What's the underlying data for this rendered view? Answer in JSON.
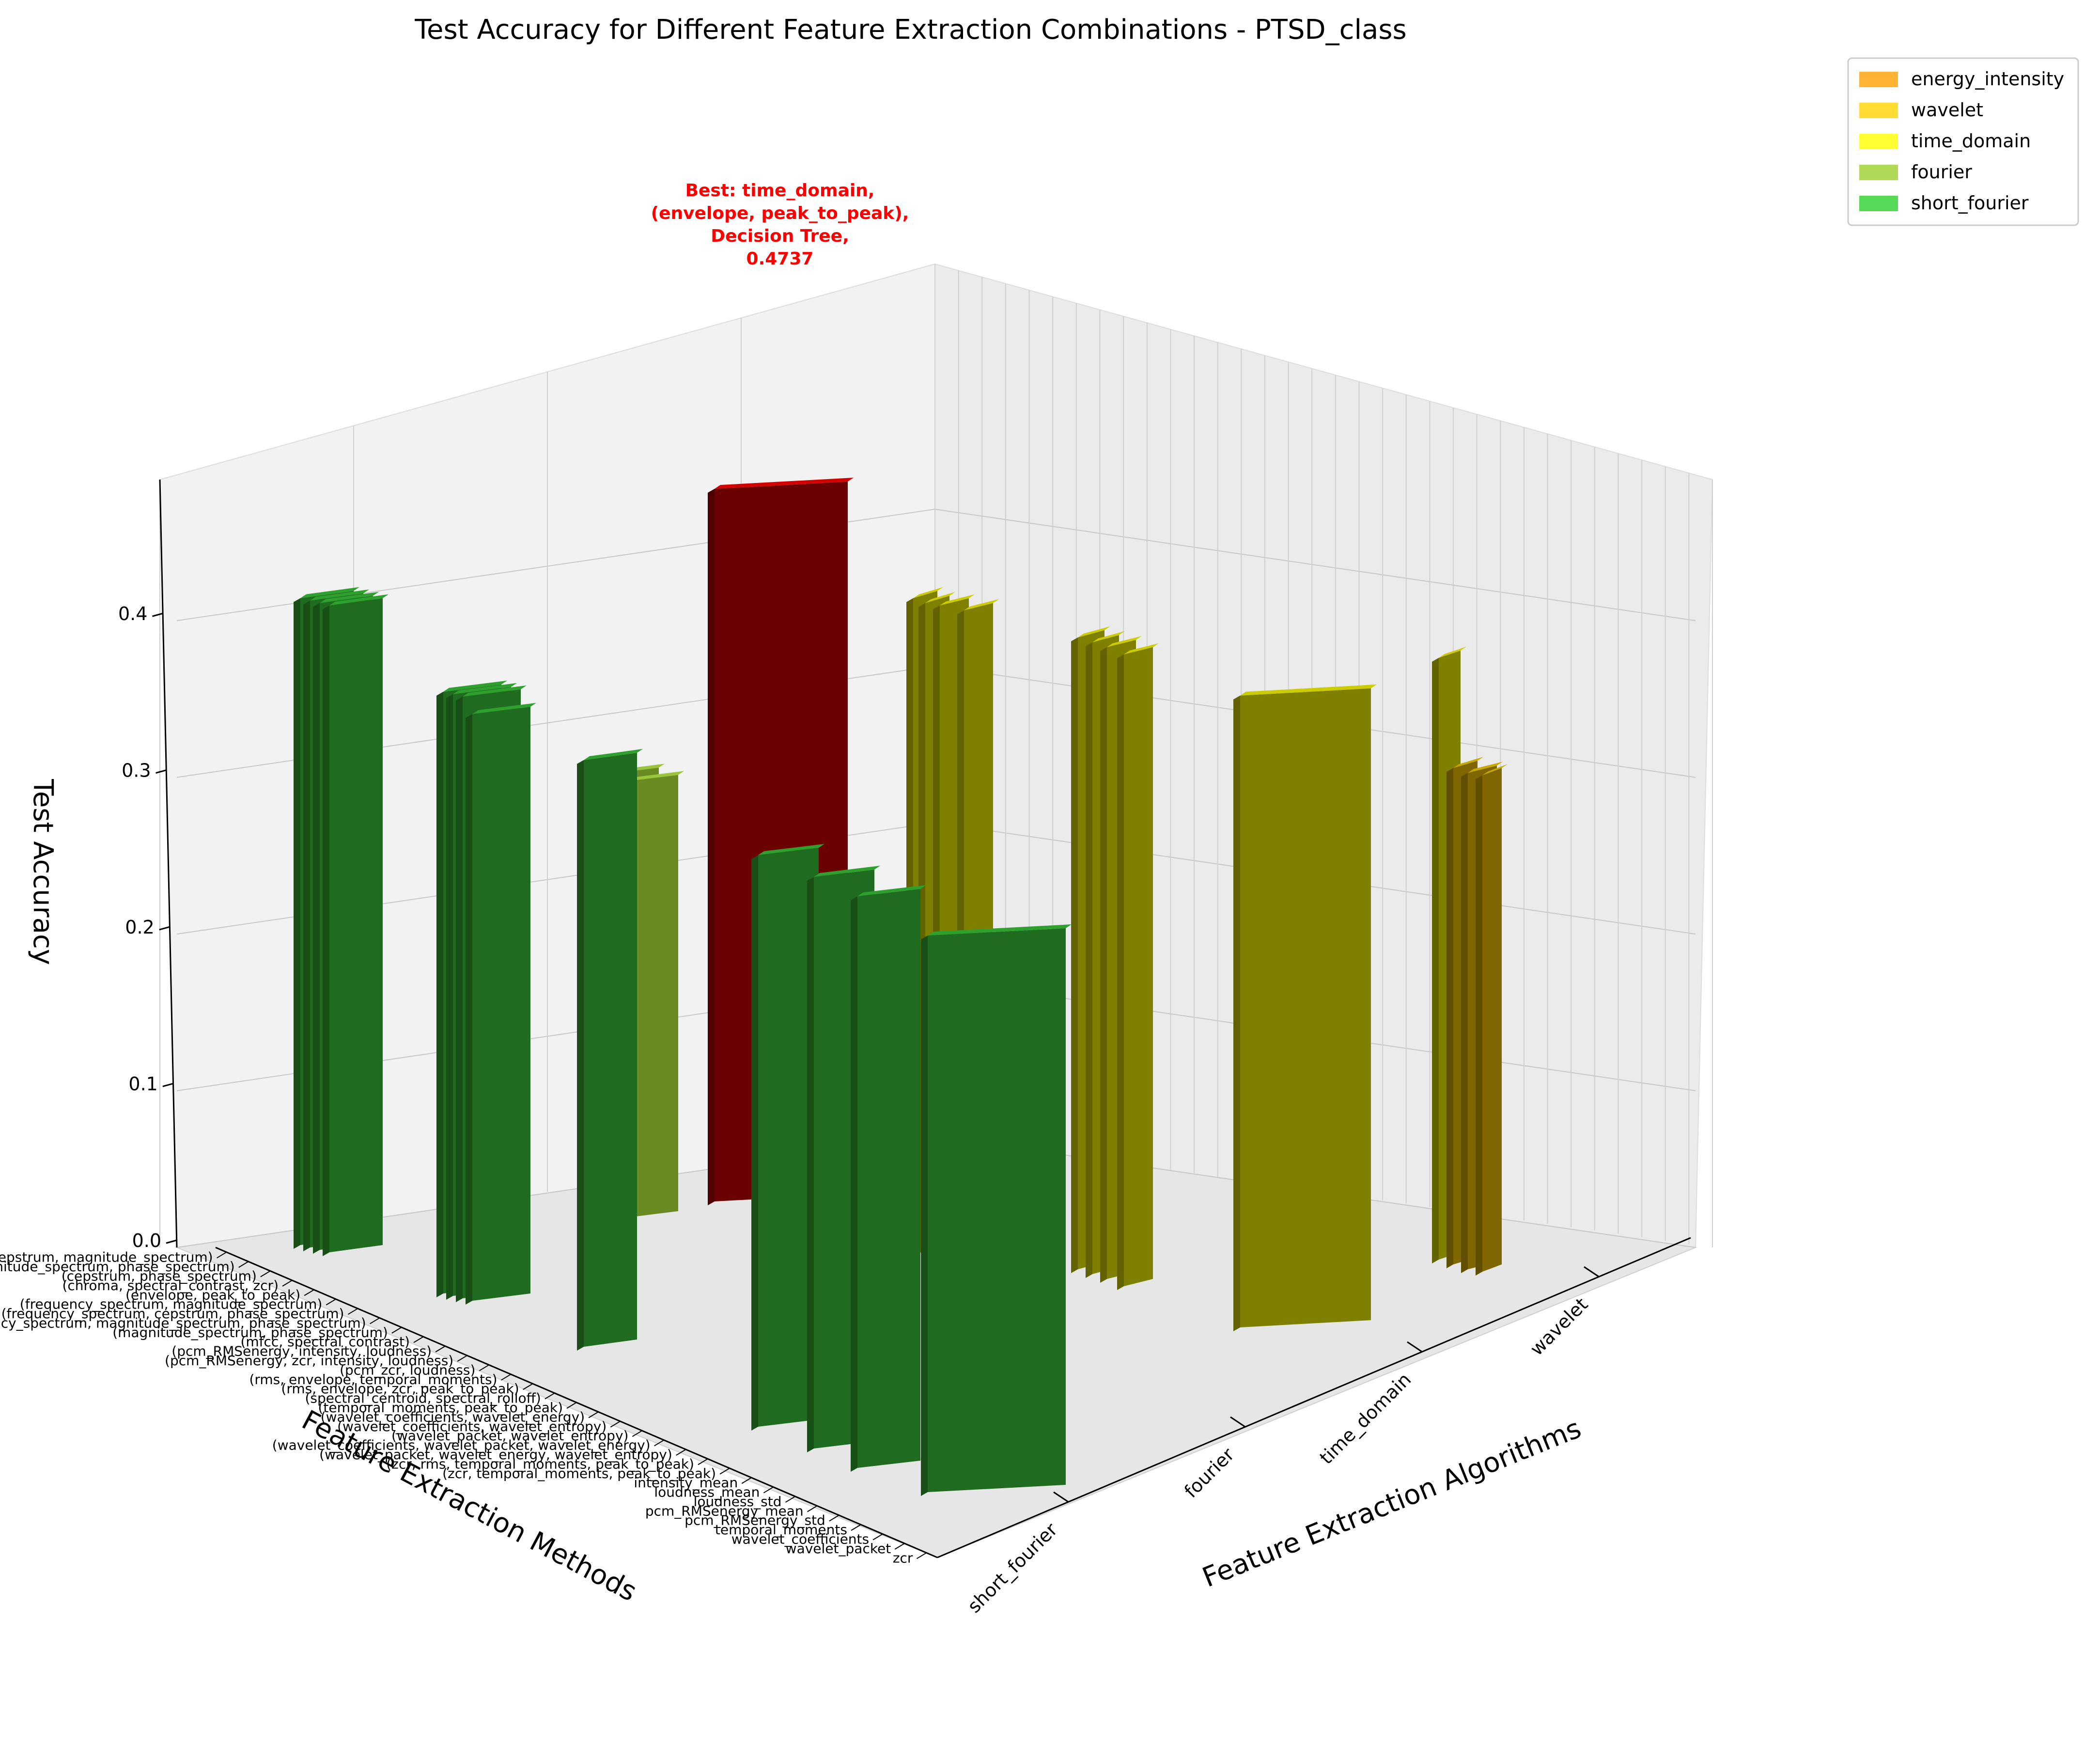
{
  "chart_data": {
    "type": "bar3d",
    "title": "Test Accuracy for Different Feature Extraction Combinations - PTSD_class",
    "zlabel": "Test Accuracy",
    "xlabel": "Feature Extraction Algorithms",
    "ylabel": "Feature Extraction Methods",
    "zlim": [
      0,
      0.49
    ],
    "zticks": [
      "0.0",
      "0.1",
      "0.2",
      "0.3",
      "0.4"
    ],
    "algorithm_ticks": [
      "short_fourier",
      "fourier",
      "time_domain",
      "wavelet"
    ],
    "legend": [
      {
        "label": "energy_intensity",
        "color": "#FFB533"
      },
      {
        "label": "wavelet",
        "color": "#FFDD33"
      },
      {
        "label": "time_domain",
        "color": "#FFFF33"
      },
      {
        "label": "fourier",
        "color": "#B0D957"
      },
      {
        "label": "short_fourier",
        "color": "#55D957"
      }
    ],
    "best_annotation": [
      "Best: time_domain,",
      "(envelope, peak_to_peak),",
      "Decision Tree,",
      "0.4737"
    ],
    "method_labels": [
      "(cepstrum, magnitude_spectrum)",
      "(cepstrum, magnitude_spectrum, phase_spectrum)",
      "(cepstrum, phase_spectrum)",
      "(chroma, spectral_contrast, zcr)",
      "(envelope, peak_to_peak)",
      "(frequency_spectrum, magnitude_spectrum)",
      "(frequency_spectrum, cepstrum, phase_spectrum)",
      "(frequency_spectrum, magnitude_spectrum, phase_spectrum)",
      "(magnitude_spectrum, phase_spectrum)",
      "(mfcc, spectral_contrast)",
      "(pcm_RMSenergy, intensity, loudness)",
      "(pcm_RMSenergy, zcr, intensity, loudness)",
      "(pcm_zcr, loudness)",
      "(rms, envelope, temporal_moments)",
      "(rms, envelope, zcr, peak_to_peak)",
      "(spectral_centroid, spectral_rolloff)",
      "(temporal_moments, peak_to_peak)",
      "(wavelet_coefficients, wavelet_energy)",
      "(wavelet_coefficients, wavelet_entropy)",
      "(wavelet_packet, wavelet_entropy)",
      "(wavelet_coefficients, wavelet_packet, wavelet_energy)",
      "(wavelet_packet, wavelet_energy, wavelet_entropy)",
      "(zcr, rms, temporal_moments, peak_to_peak)",
      "(zcr, temporal_moments, peak_to_peak)",
      "intensity_mean",
      "loudness_mean",
      "loudness_std",
      "pcm_RMSenergy_mean",
      "pcm_RMSenergy_std",
      "temporal_moments",
      "wavelet_coefficients",
      "wavelet_packet",
      "zcr"
    ],
    "bars": [
      {
        "algorithm": "short_fourier",
        "method": "(cepstrum, magnitude_spectrum)",
        "value": 0.43
      },
      {
        "algorithm": "short_fourier",
        "method": "(cepstrum, magnitude_spectrum, phase_spectrum)",
        "value": 0.43
      },
      {
        "algorithm": "short_fourier",
        "method": "(cepstrum, phase_spectrum)",
        "value": 0.43
      },
      {
        "algorithm": "short_fourier",
        "method": "(chroma, spectral_contrast, zcr)",
        "value": 0.43
      },
      {
        "algorithm": "short_fourier",
        "method": "(frequency_spectrum, magnitude_spectrum)",
        "value": 0.4
      },
      {
        "algorithm": "short_fourier",
        "method": "(frequency_spectrum, cepstrum, phase_spectrum)",
        "value": 0.4
      },
      {
        "algorithm": "short_fourier",
        "method": "(frequency_spectrum, magnitude_spectrum, phase_spectrum)",
        "value": 0.4
      },
      {
        "algorithm": "short_fourier",
        "method": "(magnitude_spectrum, phase_spectrum)",
        "value": 0.39
      },
      {
        "algorithm": "short_fourier",
        "method": "(mfcc, spectral_contrast)",
        "value": 0.39
      },
      {
        "algorithm": "fourier",
        "method": "(spectral_centroid, spectral_rolloff)",
        "value": 0.29
      },
      {
        "algorithm": "fourier",
        "method": "(magnitude_spectrum, phase_spectrum)",
        "value": 0.29
      },
      {
        "algorithm": "time_domain",
        "method": "(envelope, peak_to_peak)",
        "value": 0.4737
      },
      {
        "algorithm": "short_fourier",
        "method": "(wavelet_coefficients, wavelet_energy)",
        "value": 0.38
      },
      {
        "algorithm": "short_fourier",
        "method": "(wavelet_packet, wavelet_entropy)",
        "value": 0.38
      },
      {
        "algorithm": "short_fourier",
        "method": "(zcr, rms, temporal_moments, peak_to_peak)",
        "value": 0.38
      },
      {
        "algorithm": "short_fourier",
        "method": "loudness_std",
        "value": 0.37
      },
      {
        "algorithm": "time_domain",
        "method": "(pcm_RMSenergy, intensity, loudness)",
        "value": 0.43
      },
      {
        "algorithm": "time_domain",
        "method": "(pcm_zcr, loudness)",
        "value": 0.43
      },
      {
        "algorithm": "time_domain",
        "method": "(rms, envelope, temporal_moments)",
        "value": 0.43
      },
      {
        "algorithm": "time_domain",
        "method": "(rms, envelope, zcr, peak_to_peak)",
        "value": 0.43
      },
      {
        "algorithm": "time_domain",
        "method": "(temporal_moments, peak_to_peak)",
        "value": 0.42
      },
      {
        "algorithm": "time_domain",
        "method": "intensity_mean",
        "value": 0.42
      },
      {
        "algorithm": "time_domain",
        "method": "loudness_mean",
        "value": 0.42
      },
      {
        "algorithm": "time_domain",
        "method": "pcm_RMSenergy_mean",
        "value": 0.42
      },
      {
        "algorithm": "time_domain",
        "method": "pcm_RMSenergy_std",
        "value": 0.42
      },
      {
        "algorithm": "time_domain",
        "method": "zcr",
        "value": 0.4
      },
      {
        "algorithm": "wavelet",
        "method": "(wavelet_coefficients, wavelet_entropy)",
        "value": 0.33
      },
      {
        "algorithm": "wavelet",
        "method": "(wavelet_coefficients, wavelet_packet, wavelet_energy)",
        "value": 0.33
      },
      {
        "algorithm": "wavelet",
        "method": "(wavelet_packet, wavelet_energy, wavelet_entropy)",
        "value": 0.33
      }
    ]
  }
}
